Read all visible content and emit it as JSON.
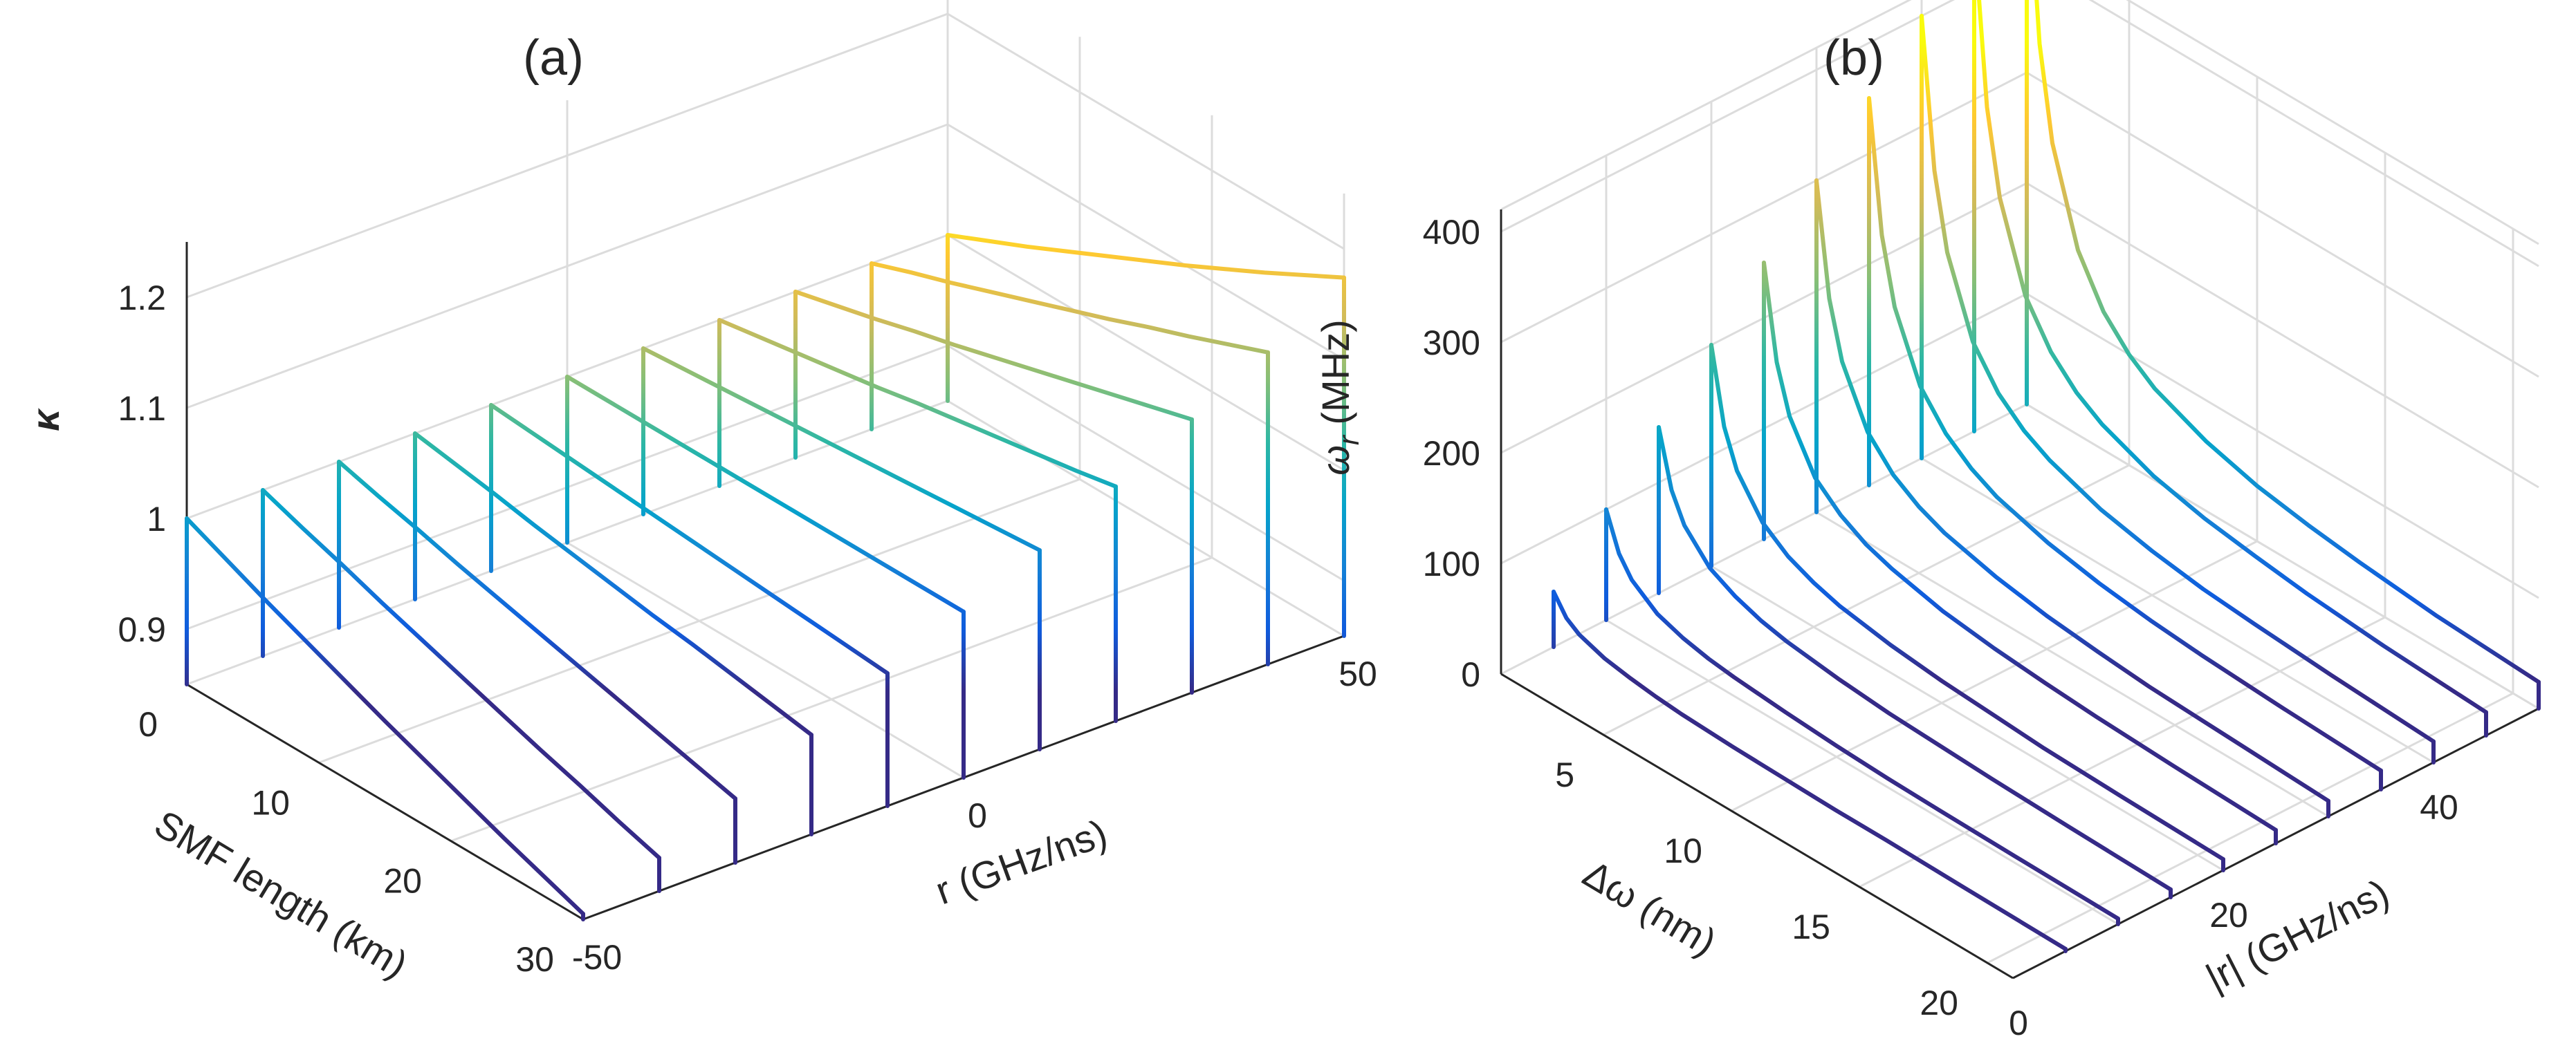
{
  "chart_data": [
    {
      "type": "line3d",
      "panel": "(a)",
      "title": "(a)",
      "xlabel": "SMF length (km)",
      "ylabel": "r (GHz/ns)",
      "zlabel": "κ",
      "xticks": [
        "0",
        "10",
        "20",
        "30"
      ],
      "yticks": [
        "-50",
        "0",
        "50"
      ],
      "zticks": [
        "0.9",
        "1",
        "1.1",
        "1.2"
      ],
      "xlim": [
        0,
        30
      ],
      "ylim": [
        -50,
        50
      ],
      "zlim": [
        0.85,
        1.25
      ],
      "smf_length_km": [
        0,
        3,
        6,
        9,
        12,
        15,
        18,
        21,
        24,
        27,
        30
      ],
      "series": [
        {
          "name": "r = -50",
          "r": -50,
          "kappa": [
            1.0,
            0.984,
            0.968,
            0.953,
            0.938,
            0.923,
            0.909,
            0.895,
            0.881,
            0.868,
            0.855
          ]
        },
        {
          "name": "r = -40",
          "r": -40,
          "kappa": [
            1.0,
            0.987,
            0.975,
            0.962,
            0.95,
            0.938,
            0.926,
            0.914,
            0.903,
            0.891,
            0.88
          ]
        },
        {
          "name": "r = -30",
          "r": -30,
          "kappa": [
            1.0,
            0.99,
            0.981,
            0.971,
            0.962,
            0.953,
            0.944,
            0.935,
            0.926,
            0.917,
            0.908
          ]
        },
        {
          "name": "r = -20",
          "r": -20,
          "kappa": [
            1.0,
            0.994,
            0.988,
            0.981,
            0.975,
            0.969,
            0.963,
            0.958,
            0.952,
            0.946,
            0.94
          ]
        },
        {
          "name": "r = -10",
          "r": -10,
          "kappa": [
            1.0,
            0.997,
            0.994,
            0.991,
            0.988,
            0.985,
            0.982,
            0.979,
            0.976,
            0.973,
            0.97
          ]
        },
        {
          "name": "r = 0",
          "r": 0,
          "kappa": [
            1.0,
            1.0,
            1.0,
            1.0,
            1.0,
            1.0,
            1.0,
            1.0,
            1.0,
            1.0,
            1.0
          ]
        },
        {
          "name": "r = 10",
          "r": 10,
          "kappa": [
            1.0,
            1.003,
            1.006,
            1.009,
            1.012,
            1.015,
            1.018,
            1.021,
            1.024,
            1.027,
            1.03
          ]
        },
        {
          "name": "r = 20",
          "r": 20,
          "kappa": [
            1.0,
            1.006,
            1.012,
            1.018,
            1.024,
            1.031,
            1.037,
            1.043,
            1.049,
            1.055,
            1.062
          ]
        },
        {
          "name": "r = 30",
          "r": 30,
          "kappa": [
            1.0,
            1.009,
            1.018,
            1.028,
            1.037,
            1.047,
            1.057,
            1.067,
            1.077,
            1.087,
            1.097
          ]
        },
        {
          "name": "r = 40",
          "r": 40,
          "kappa": [
            1.0,
            1.013,
            1.025,
            1.038,
            1.051,
            1.064,
            1.077,
            1.091,
            1.104,
            1.118,
            1.132
          ]
        },
        {
          "name": "r = 50",
          "r": 50,
          "kappa": [
            1.0,
            1.016,
            1.032,
            1.049,
            1.066,
            1.083,
            1.1,
            1.118,
            1.136,
            1.155,
            1.174
          ]
        }
      ]
    },
    {
      "type": "line3d",
      "panel": "(b)",
      "title": "(b)",
      "xlabel": "Δω (nm)",
      "ylabel": "|r| (GHz/ns)",
      "zlabel": "ω_r (MHz)",
      "zlabel_main": "ω",
      "zlabel_sub": "r",
      "zlabel_unit": " (MHz)",
      "xticks": [
        "5",
        "10",
        "15",
        "20"
      ],
      "yticks": [
        "0",
        "20",
        "40"
      ],
      "zticks": [
        "0",
        "100",
        "200",
        "300",
        "400"
      ],
      "xlim": [
        1,
        21
      ],
      "ylim": [
        0,
        50
      ],
      "zlim": [
        0,
        420
      ],
      "delta_omega_nm": [
        1.0,
        1.5,
        2,
        3,
        4,
        5,
        6,
        8,
        10,
        12,
        14,
        17,
        21
      ],
      "series": [
        {
          "name": "|r| = 5",
          "r": 5,
          "omega_r": [
            50,
            33,
            25,
            17,
            13,
            10,
            8,
            6,
            5,
            4,
            4,
            3,
            2
          ]
        },
        {
          "name": "|r| = 10",
          "r": 10,
          "omega_r": [
            100,
            67,
            50,
            33,
            25,
            20,
            17,
            13,
            10,
            8,
            7,
            6,
            5
          ]
        },
        {
          "name": "|r| = 15",
          "r": 15,
          "omega_r": [
            150,
            100,
            75,
            50,
            38,
            30,
            25,
            19,
            15,
            13,
            11,
            9,
            7
          ]
        },
        {
          "name": "|r| = 20",
          "r": 20,
          "omega_r": [
            200,
            133,
            100,
            67,
            50,
            40,
            33,
            25,
            20,
            17,
            14,
            12,
            10
          ]
        },
        {
          "name": "|r| = 25",
          "r": 25,
          "omega_r": [
            250,
            167,
            125,
            83,
            63,
            50,
            42,
            31,
            25,
            21,
            18,
            15,
            12
          ]
        },
        {
          "name": "|r| = 30",
          "r": 30,
          "omega_r": [
            300,
            200,
            150,
            100,
            75,
            60,
            50,
            38,
            30,
            25,
            21,
            18,
            14
          ]
        },
        {
          "name": "|r| = 35",
          "r": 35,
          "omega_r": [
            350,
            233,
            175,
            117,
            88,
            70,
            58,
            44,
            35,
            29,
            25,
            21,
            17
          ]
        },
        {
          "name": "|r| = 40",
          "r": 40,
          "omega_r": [
            400,
            267,
            200,
            133,
            100,
            80,
            67,
            50,
            40,
            33,
            29,
            24,
            19
          ]
        },
        {
          "name": "|r| = 45",
          "r": 45,
          "omega_r": [
            450,
            300,
            225,
            150,
            113,
            90,
            75,
            56,
            45,
            38,
            32,
            26,
            21
          ]
        },
        {
          "name": "|r| = 50",
          "r": 50,
          "omega_r": [
            500,
            333,
            250,
            167,
            125,
            100,
            83,
            63,
            50,
            42,
            36,
            29,
            24
          ]
        }
      ]
    }
  ]
}
